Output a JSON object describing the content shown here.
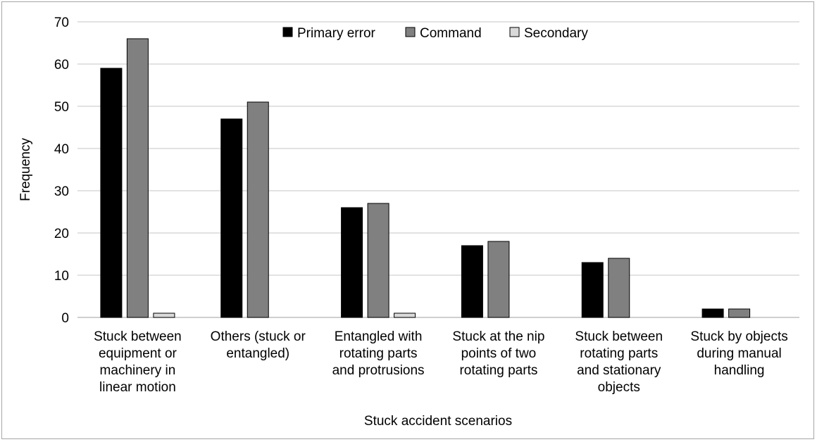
{
  "chart_data": {
    "type": "bar",
    "title": "",
    "xlabel": "Stuck accident scenarios",
    "ylabel": "Frequency",
    "ylim": [
      0,
      70
    ],
    "yticks": [
      0,
      10,
      20,
      30,
      40,
      50,
      60,
      70
    ],
    "grid": true,
    "legend_position": "top-center",
    "categories": [
      [
        "Stuck between",
        "equipment or",
        "machinery in",
        "linear motion"
      ],
      [
        "Others (stuck or",
        "entangled)"
      ],
      [
        "Entangled with",
        "rotating parts",
        "and protrusions"
      ],
      [
        "Stuck at the nip",
        "points of two",
        "rotating parts"
      ],
      [
        "Stuck between",
        "rotating parts",
        "and stationary",
        "objects"
      ],
      [
        "Stuck by objects",
        "during manual",
        "handling"
      ]
    ],
    "series": [
      {
        "name": "Primary error",
        "color": "#000000",
        "values": [
          59,
          47,
          26,
          17,
          13,
          2
        ]
      },
      {
        "name": "Command",
        "color": "#808080",
        "values": [
          66,
          51,
          27,
          18,
          14,
          2
        ]
      },
      {
        "name": "Secondary",
        "color": "#d9d9d9",
        "values": [
          1,
          0,
          1,
          0,
          0,
          0
        ]
      }
    ]
  }
}
